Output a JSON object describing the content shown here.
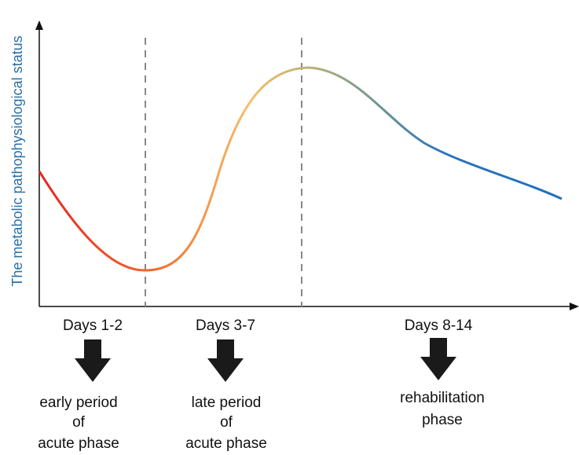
{
  "diagram": {
    "y_axis_label": "The metabolic pathophysiological status",
    "phases": [
      {
        "name": "Days 1-2",
        "description": [
          "early period",
          "of",
          "acute phase"
        ]
      },
      {
        "name": "Days 3-7",
        "description": [
          "late period",
          "of",
          "acute phase"
        ]
      },
      {
        "name": "Days 8-14",
        "description": [
          "rehabilitation",
          "phase"
        ]
      }
    ],
    "curve_colors": [
      "#e8241c",
      "#f06a2e",
      "#f5c06a",
      "#7e9c8c",
      "#1f6fc0"
    ],
    "divider_color": "#888888",
    "arrow_color": "#1a1a1a"
  }
}
